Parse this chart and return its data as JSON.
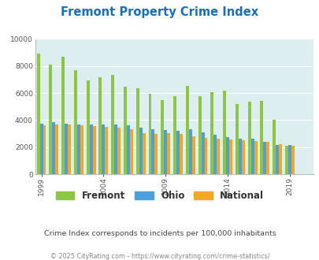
{
  "title": "Fremont Property Crime Index",
  "years_actual": [
    1999,
    2000,
    2001,
    2002,
    2003,
    2004,
    2005,
    2006,
    2007,
    2008,
    2009,
    2010,
    2011,
    2012,
    2013,
    2014,
    2015,
    2016,
    2017,
    2018,
    2019,
    2020
  ],
  "fremont_actual": [
    8900,
    8100,
    8700,
    7700,
    6950,
    7200,
    7350,
    6450,
    6350,
    5950,
    5500,
    5750,
    6550,
    5800,
    6050,
    6200,
    5200,
    5350,
    5450,
    4050,
    2100,
    0
  ],
  "ohio_actual": [
    3750,
    3850,
    3750,
    3650,
    3650,
    3650,
    3650,
    3600,
    3450,
    3300,
    3250,
    3200,
    3350,
    3100,
    2900,
    2750,
    2600,
    2600,
    2400,
    2150,
    2150,
    0
  ],
  "national_actual": [
    3600,
    3700,
    3650,
    3600,
    3550,
    3500,
    3450,
    3300,
    3050,
    3000,
    3050,
    2950,
    2800,
    2700,
    2600,
    2550,
    2490,
    2460,
    2400,
    2200,
    2100,
    0
  ],
  "fremont_color": "#8dc63f",
  "ohio_color": "#4d9fdc",
  "national_color": "#f5a623",
  "plot_bg": "#ddeef0",
  "ylim": [
    0,
    10000
  ],
  "yticks": [
    0,
    2000,
    4000,
    6000,
    8000,
    10000
  ],
  "xtick_labels": [
    "1999",
    "2004",
    "2009",
    "2014",
    "2019"
  ],
  "xtick_positions": [
    1999,
    2004,
    2009,
    2014,
    2019
  ],
  "title_color": "#1a6ebd",
  "subtitle": "Crime Index corresponds to incidents per 100,000 inhabitants",
  "footer": "© 2025 CityRating.com - https://www.cityrating.com/crime-statistics/",
  "subtitle_color": "#444444",
  "footer_color": "#888888",
  "legend_labels": [
    "Fremont",
    "Ohio",
    "National"
  ]
}
